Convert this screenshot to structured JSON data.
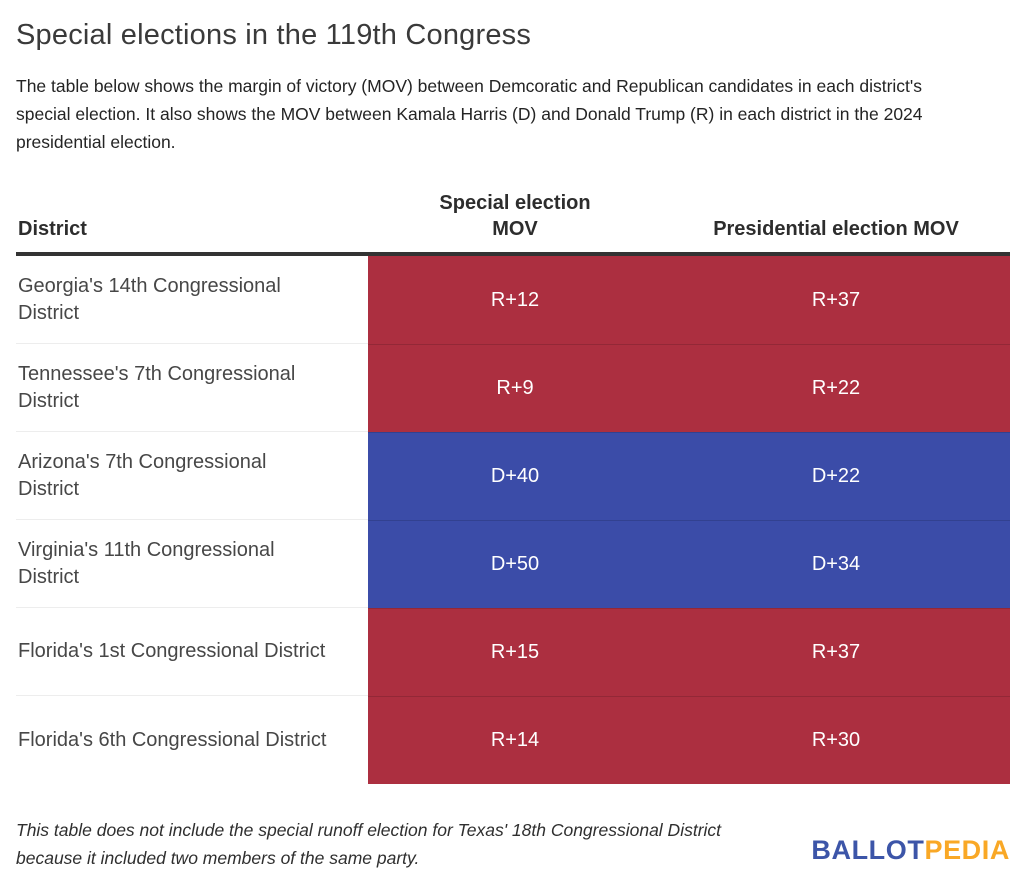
{
  "header": {
    "title": "Special elections in the 119th Congress",
    "description": "The table below shows the margin of victory (MOV) between Demcoratic and Republican candidates in each district's special election. It also shows the MOV between Kamala Harris (D) and Donald Trump (R) in each district in the 2024 presidential election."
  },
  "chart_data": {
    "type": "table",
    "title": "Special elections in the 119th Congress",
    "columns": [
      "District",
      "Special election MOV",
      "Presidential election MOV"
    ],
    "rows": [
      {
        "district": "Georgia's 14th Congressional District",
        "special_mov": "R+12",
        "presidential_mov": "R+37",
        "party": "R"
      },
      {
        "district": "Tennessee's 7th Congressional District",
        "special_mov": "R+9",
        "presidential_mov": "R+22",
        "party": "R"
      },
      {
        "district": "Arizona's 7th Congressional District",
        "special_mov": "D+40",
        "presidential_mov": "D+22",
        "party": "D"
      },
      {
        "district": "Virginia's 11th Congressional District",
        "special_mov": "D+50",
        "presidential_mov": "D+34",
        "party": "D"
      },
      {
        "district": "Florida's 1st Congressional District",
        "special_mov": "R+15",
        "presidential_mov": "R+37",
        "party": "R"
      },
      {
        "district": "Florida's 6th Congressional District",
        "special_mov": "R+14",
        "presidential_mov": "R+30",
        "party": "R"
      }
    ],
    "colors": {
      "republican_bg": "#ac2f40",
      "democratic_bg": "#3b4ca8",
      "mov_text": "#ffffff",
      "header_rule": "#333333"
    },
    "layout_hints": {
      "row_shading": "MOV columns filled by winning party color; R rows red, D rows blue",
      "grid": "light divider between district cells, dark header rule"
    }
  },
  "footer": {
    "note": "This table does not include the special runoff election for Texas' 18th Congressional District because it included two members of the same party.",
    "logo": {
      "part1": "BALLOT",
      "part2": "PEDIA",
      "part1_color": "#3c55a8",
      "part2_color": "#f9a826"
    }
  }
}
